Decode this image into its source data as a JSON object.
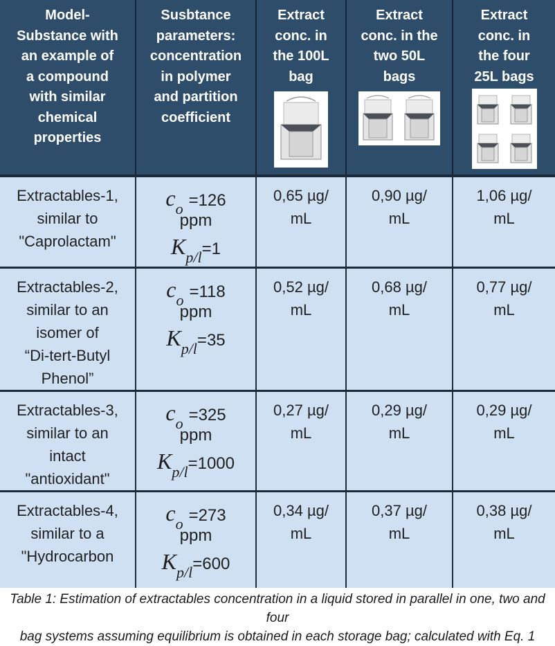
{
  "header": {
    "col1": [
      "Model-",
      "Substance with",
      "an example of",
      "a compound",
      "with similar",
      "chemical",
      "properties"
    ],
    "col2": [
      "Susbtance",
      "parameters:",
      "concentration",
      "in polymer",
      "and partition",
      "coefficient"
    ],
    "col3": [
      "Extract",
      "conc. in",
      "the 100L",
      "bag"
    ],
    "col4": [
      "Extract",
      "conc. in the",
      "two 50L",
      "bags"
    ],
    "col5": [
      "Extract",
      "conc. in",
      "the four",
      "25L bags"
    ]
  },
  "symbols": {
    "c": "c",
    "c_sub": "o",
    "k": "K",
    "k_sub": "p/l",
    "eq": "=",
    "unit": "ppm"
  },
  "rows": [
    {
      "model": [
        "Extractables-1,",
        "similar to",
        "\"Caprolactam\""
      ],
      "co": "126",
      "kpl": "1",
      "v100": [
        "0,65 µg/",
        "mL"
      ],
      "v50": [
        "0,90 µg/",
        "mL"
      ],
      "v25": [
        "1,06 µg/",
        "mL"
      ]
    },
    {
      "model": [
        "Extractables-2,",
        "similar to an",
        "isomer of",
        "“Di-tert-Butyl",
        "Phenol”"
      ],
      "co": "118",
      "kpl": "35",
      "v100": [
        "0,52 µg/",
        "mL"
      ],
      "v50": [
        "0,68 µg/",
        "mL"
      ],
      "v25": [
        "0,77 µg/",
        "mL"
      ]
    },
    {
      "model": [
        "Extractables-3,",
        "similar to an",
        "intact",
        "\"antioxidant\""
      ],
      "co": "325",
      "kpl": "1000",
      "v100": [
        "0,27 µg/",
        "mL"
      ],
      "v50": [
        "0,29 µg/",
        "mL"
      ],
      "v25": [
        "0,29 µg/",
        "mL"
      ]
    },
    {
      "model": [
        "Extractables-4,",
        "similar to a",
        "\"Hydrocarbon"
      ],
      "co": "273",
      "kpl": "600",
      "v100": [
        "0,34 µg/",
        "mL"
      ],
      "v50": [
        "0,37 µg/",
        "mL"
      ],
      "v25": [
        "0,38 µg/",
        "mL"
      ]
    }
  ],
  "caption": [
    "Table 1: Estimation of extractables concentration in a liquid stored in parallel in one, two and four",
    "bag systems assuming equilibrium is obtained in each storage bag; calculated with Eq. 1"
  ]
}
